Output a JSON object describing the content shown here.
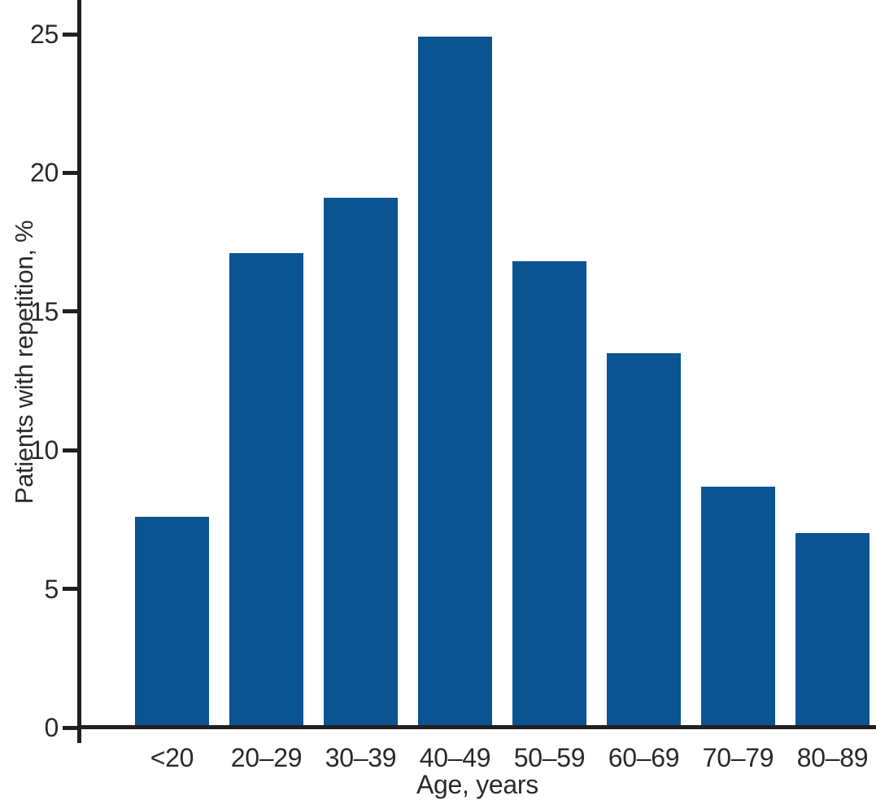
{
  "figure": {
    "background": "#ffffff"
  },
  "chart_data": {
    "type": "bar",
    "title": "",
    "categories": [
      "<20",
      "20–29",
      "30–39",
      "40–49",
      "50–59",
      "60–69",
      "70–79",
      "80–89"
    ],
    "values": [
      7.6,
      17.1,
      19.1,
      24.9,
      16.8,
      13.5,
      8.7,
      7.0
    ],
    "xlabel": "Age, years",
    "ylabel": "Patients with repetition, %",
    "yticks": [
      0,
      5,
      10,
      15,
      20,
      25
    ],
    "ylim": [
      0,
      26.2
    ],
    "grid": false,
    "legend": null,
    "bar_color": "#0a5491",
    "axis_color": "#231f20",
    "text_color": "#2b2a29"
  }
}
